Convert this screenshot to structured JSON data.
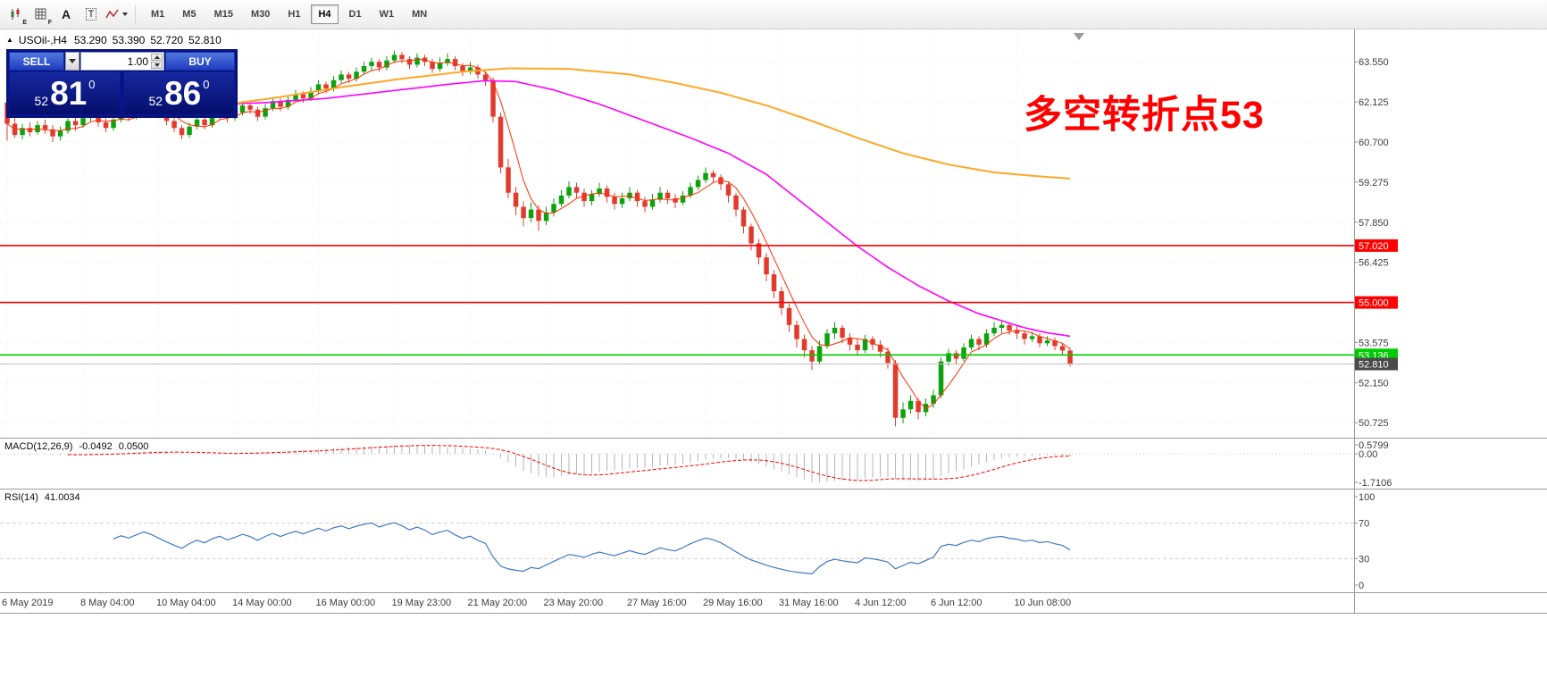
{
  "toolbar": {
    "icon_subs": {
      "e": "E",
      "f": "F",
      "a": "A",
      "t": "T"
    },
    "timeframes": [
      "M1",
      "M5",
      "M15",
      "M30",
      "H1",
      "H4",
      "D1",
      "W1",
      "MN"
    ],
    "active_timeframe": "H4"
  },
  "chart_header": {
    "collapse_icon": "▲",
    "symbol": "USOil-,H4",
    "open": "53.290",
    "high": "53.390",
    "low": "52.720",
    "close": "52.810"
  },
  "quote_panel": {
    "sell_label": "SELL",
    "buy_label": "BUY",
    "volume": "1.00",
    "bid": {
      "whole": "52",
      "pips": "81",
      "pipette": "0"
    },
    "ask": {
      "whole": "52",
      "pips": "86",
      "pipette": "0"
    }
  },
  "annotation": {
    "text": "多空转折点53",
    "color": "#ff0000"
  },
  "indicators": {
    "macd": {
      "label": "MACD(12,26,9)",
      "value1": "-0.0492",
      "value2": "0.0500",
      "scale_max": "0.5799",
      "scale_zero": "0.00",
      "scale_min": "-1.7106"
    },
    "rsi": {
      "label": "RSI(14)",
      "value": "41.0034",
      "levels": [
        "100",
        "70",
        "30",
        "0"
      ]
    }
  },
  "chart_data": {
    "type": "candlestick",
    "symbol": "USOil-",
    "timeframe": "H4",
    "price_scale": [
      63.55,
      62.125,
      60.7,
      59.275,
      57.85,
      56.425,
      55.0,
      53.575,
      52.15,
      50.725
    ],
    "hlines": [
      {
        "value": 57.02,
        "label": "57.020",
        "color": "#ff0000"
      },
      {
        "value": 55.0,
        "label": "55.000",
        "color": "#ff0000"
      },
      {
        "value": 53.136,
        "label": "53.136",
        "color": "#00cc00"
      }
    ],
    "bid_line": {
      "value": 52.81,
      "label": "52.810"
    },
    "fast_ma_period": 5,
    "ma_magenta": [
      [
        0,
        61.9
      ],
      [
        12,
        61.95
      ],
      [
        24,
        62.0
      ],
      [
        34,
        62.1
      ],
      [
        42,
        62.25
      ],
      [
        50,
        62.5
      ],
      [
        58,
        62.75
      ],
      [
        63,
        62.88
      ],
      [
        67,
        62.85
      ],
      [
        72,
        62.55
      ],
      [
        78,
        62.05
      ],
      [
        84,
        61.45
      ],
      [
        90,
        60.85
      ],
      [
        95,
        60.3
      ],
      [
        100,
        59.55
      ],
      [
        104,
        58.7
      ],
      [
        108,
        57.85
      ],
      [
        112,
        57.0
      ],
      [
        116,
        56.25
      ],
      [
        120,
        55.6
      ],
      [
        124,
        55.05
      ],
      [
        128,
        54.6
      ],
      [
        131,
        54.35
      ],
      [
        134,
        54.1
      ],
      [
        137,
        53.92
      ],
      [
        140,
        53.8
      ]
    ],
    "ma_orange": [
      [
        28,
        62.0
      ],
      [
        36,
        62.3
      ],
      [
        44,
        62.65
      ],
      [
        52,
        62.95
      ],
      [
        60,
        63.2
      ],
      [
        66,
        63.32
      ],
      [
        74,
        63.3
      ],
      [
        82,
        63.1
      ],
      [
        88,
        62.8
      ],
      [
        94,
        62.45
      ],
      [
        100,
        62.0
      ],
      [
        106,
        61.45
      ],
      [
        112,
        60.85
      ],
      [
        118,
        60.3
      ],
      [
        124,
        59.9
      ],
      [
        130,
        59.62
      ],
      [
        135,
        59.5
      ],
      [
        140,
        59.4
      ]
    ],
    "x_labels": [
      {
        "i": 0,
        "label": "6 May 2019"
      },
      {
        "i": 10,
        "label": "8 May 04:00"
      },
      {
        "i": 20,
        "label": "10 May 04:00"
      },
      {
        "i": 30,
        "label": "14 May 00:00"
      },
      {
        "i": 41,
        "label": "16 May 00:00"
      },
      {
        "i": 51,
        "label": "19 May 23:00"
      },
      {
        "i": 61,
        "label": "21 May 20:00"
      },
      {
        "i": 71,
        "label": "23 May 20:00"
      },
      {
        "i": 82,
        "label": "27 May 16:00"
      },
      {
        "i": 92,
        "label": "29 May 16:00"
      },
      {
        "i": 102,
        "label": "31 May 16:00"
      },
      {
        "i": 112,
        "label": "4 Jun 12:00"
      },
      {
        "i": 122,
        "label": "6 Jun 12:00"
      },
      {
        "i": 133,
        "label": "10 Jun 08:00"
      }
    ],
    "colors": {
      "up": "#0ea10e",
      "down": "#e23b2e",
      "fast_ma": "#ff3000",
      "magenta_ma": "#ff00ff",
      "orange_ma": "#ffa726",
      "macd_hist": "#b6b6b6",
      "macd_signal": "#ff0000",
      "rsi_line": "#4079c5"
    },
    "candles": [
      [
        62.1,
        62.2,
        60.75,
        61.35
      ],
      [
        61.35,
        61.55,
        60.85,
        60.95
      ],
      [
        60.95,
        61.35,
        60.8,
        61.2
      ],
      [
        61.2,
        61.4,
        60.9,
        61.05
      ],
      [
        61.05,
        61.45,
        60.95,
        61.3
      ],
      [
        61.3,
        61.5,
        61.0,
        61.15
      ],
      [
        61.15,
        61.3,
        60.7,
        60.9
      ],
      [
        60.9,
        61.25,
        60.75,
        61.1
      ],
      [
        61.1,
        61.55,
        61.0,
        61.45
      ],
      [
        61.45,
        61.6,
        61.1,
        61.3
      ],
      [
        61.3,
        61.7,
        61.2,
        61.55
      ],
      [
        61.55,
        61.85,
        61.4,
        61.7
      ],
      [
        61.7,
        61.8,
        61.25,
        61.4
      ],
      [
        61.4,
        61.55,
        61.05,
        61.2
      ],
      [
        61.2,
        61.6,
        61.1,
        61.5
      ],
      [
        61.5,
        61.9,
        61.4,
        61.75
      ],
      [
        61.75,
        61.9,
        61.45,
        61.6
      ],
      [
        61.6,
        62.0,
        61.5,
        61.85
      ],
      [
        61.85,
        62.25,
        61.75,
        62.1
      ],
      [
        62.1,
        62.2,
        61.8,
        61.95
      ],
      [
        61.95,
        62.05,
        61.55,
        61.7
      ],
      [
        61.7,
        61.8,
        61.3,
        61.45
      ],
      [
        61.45,
        61.55,
        61.05,
        61.2
      ],
      [
        61.2,
        61.3,
        60.8,
        60.95
      ],
      [
        60.95,
        61.4,
        60.85,
        61.25
      ],
      [
        61.25,
        61.65,
        61.15,
        61.5
      ],
      [
        61.5,
        61.6,
        61.15,
        61.3
      ],
      [
        61.3,
        61.75,
        61.2,
        61.6
      ],
      [
        61.6,
        61.95,
        61.5,
        61.8
      ],
      [
        61.8,
        61.9,
        61.4,
        61.55
      ],
      [
        61.55,
        61.9,
        61.45,
        61.75
      ],
      [
        61.75,
        62.15,
        61.65,
        62.0
      ],
      [
        62.0,
        62.1,
        61.7,
        61.85
      ],
      [
        61.85,
        61.95,
        61.45,
        61.6
      ],
      [
        61.6,
        62.05,
        61.5,
        61.9
      ],
      [
        61.9,
        62.3,
        61.8,
        62.15
      ],
      [
        62.15,
        62.25,
        61.8,
        61.95
      ],
      [
        61.95,
        62.35,
        61.85,
        62.2
      ],
      [
        62.2,
        62.55,
        62.1,
        62.4
      ],
      [
        62.4,
        62.5,
        62.1,
        62.25
      ],
      [
        62.25,
        62.65,
        62.15,
        62.5
      ],
      [
        62.5,
        62.9,
        62.4,
        62.75
      ],
      [
        62.75,
        62.85,
        62.45,
        62.6
      ],
      [
        62.6,
        63.05,
        62.5,
        62.9
      ],
      [
        62.9,
        63.25,
        62.8,
        63.1
      ],
      [
        63.1,
        63.2,
        62.8,
        62.95
      ],
      [
        62.95,
        63.35,
        62.85,
        63.2
      ],
      [
        63.2,
        63.55,
        63.1,
        63.4
      ],
      [
        63.4,
        63.7,
        63.25,
        63.55
      ],
      [
        63.55,
        63.65,
        63.2,
        63.35
      ],
      [
        63.35,
        63.75,
        63.25,
        63.6
      ],
      [
        63.6,
        63.95,
        63.5,
        63.8
      ],
      [
        63.8,
        63.9,
        63.5,
        63.65
      ],
      [
        63.65,
        63.75,
        63.3,
        63.45
      ],
      [
        63.45,
        63.85,
        63.35,
        63.7
      ],
      [
        63.7,
        63.8,
        63.4,
        63.55
      ],
      [
        63.55,
        63.65,
        63.15,
        63.3
      ],
      [
        63.3,
        63.7,
        63.2,
        63.5
      ],
      [
        63.5,
        63.85,
        63.4,
        63.65
      ],
      [
        63.65,
        63.75,
        63.25,
        63.4
      ],
      [
        63.4,
        63.5,
        63.05,
        63.2
      ],
      [
        63.2,
        63.55,
        63.1,
        63.35
      ],
      [
        63.35,
        63.45,
        62.95,
        63.1
      ],
      [
        63.1,
        63.2,
        62.7,
        62.9
      ],
      [
        62.9,
        63.0,
        61.4,
        61.6
      ],
      [
        61.6,
        61.75,
        59.6,
        59.8
      ],
      [
        59.8,
        60.1,
        58.7,
        58.9
      ],
      [
        58.9,
        59.1,
        58.1,
        58.4
      ],
      [
        58.4,
        58.6,
        57.7,
        58.0
      ],
      [
        58.0,
        58.55,
        57.85,
        58.3
      ],
      [
        58.3,
        58.45,
        57.55,
        57.9
      ],
      [
        57.9,
        58.4,
        57.75,
        58.2
      ],
      [
        58.2,
        58.7,
        58.05,
        58.5
      ],
      [
        58.5,
        59.0,
        58.4,
        58.8
      ],
      [
        58.8,
        59.3,
        58.7,
        59.1
      ],
      [
        59.1,
        59.25,
        58.7,
        58.9
      ],
      [
        58.9,
        59.05,
        58.4,
        58.6
      ],
      [
        58.6,
        59.0,
        58.45,
        58.85
      ],
      [
        58.85,
        59.25,
        58.75,
        59.05
      ],
      [
        59.05,
        59.15,
        58.55,
        58.75
      ],
      [
        58.75,
        58.9,
        58.3,
        58.5
      ],
      [
        58.5,
        58.9,
        58.35,
        58.7
      ],
      [
        58.7,
        59.1,
        58.6,
        58.9
      ],
      [
        58.9,
        59.0,
        58.4,
        58.6
      ],
      [
        58.6,
        58.75,
        58.2,
        58.4
      ],
      [
        58.4,
        58.85,
        58.3,
        58.65
      ],
      [
        58.65,
        59.1,
        58.55,
        58.9
      ],
      [
        58.9,
        59.0,
        58.5,
        58.7
      ],
      [
        58.7,
        58.85,
        58.35,
        58.55
      ],
      [
        58.55,
        58.95,
        58.45,
        58.8
      ],
      [
        58.8,
        59.25,
        58.7,
        59.1
      ],
      [
        59.1,
        59.5,
        59.0,
        59.35
      ],
      [
        59.35,
        59.8,
        59.25,
        59.6
      ],
      [
        59.6,
        59.7,
        59.25,
        59.45
      ],
      [
        59.45,
        59.55,
        59.0,
        59.2
      ],
      [
        59.2,
        59.3,
        58.55,
        58.8
      ],
      [
        58.8,
        58.9,
        58.05,
        58.3
      ],
      [
        58.3,
        58.4,
        57.45,
        57.7
      ],
      [
        57.7,
        57.8,
        56.85,
        57.1
      ],
      [
        57.1,
        57.25,
        56.35,
        56.6
      ],
      [
        56.6,
        56.75,
        55.75,
        56.0
      ],
      [
        56.0,
        56.15,
        55.15,
        55.4
      ],
      [
        55.4,
        55.55,
        54.55,
        54.8
      ],
      [
        54.8,
        54.95,
        53.95,
        54.2
      ],
      [
        54.2,
        54.35,
        53.4,
        53.7
      ],
      [
        53.7,
        53.85,
        53.05,
        53.3
      ],
      [
        53.3,
        53.45,
        52.6,
        52.9
      ],
      [
        52.9,
        53.65,
        52.8,
        53.45
      ],
      [
        53.45,
        54.05,
        53.35,
        53.9
      ],
      [
        53.9,
        54.3,
        53.7,
        54.1
      ],
      [
        54.1,
        54.2,
        53.55,
        53.75
      ],
      [
        53.75,
        53.9,
        53.3,
        53.5
      ],
      [
        53.5,
        53.7,
        53.1,
        53.3
      ],
      [
        53.3,
        53.85,
        53.2,
        53.7
      ],
      [
        53.7,
        53.8,
        53.3,
        53.5
      ],
      [
        53.5,
        53.65,
        53.05,
        53.25
      ],
      [
        53.25,
        53.4,
        52.65,
        52.85
      ],
      [
        52.85,
        52.95,
        50.6,
        50.9
      ],
      [
        50.9,
        51.45,
        50.7,
        51.2
      ],
      [
        51.2,
        51.7,
        51.05,
        51.5
      ],
      [
        51.5,
        51.6,
        50.85,
        51.1
      ],
      [
        51.1,
        51.6,
        50.95,
        51.4
      ],
      [
        51.4,
        51.9,
        51.25,
        51.7
      ],
      [
        51.7,
        53.05,
        51.6,
        52.9
      ],
      [
        52.9,
        53.35,
        52.75,
        53.2
      ],
      [
        53.2,
        53.3,
        52.8,
        53.0
      ],
      [
        53.0,
        53.55,
        52.9,
        53.4
      ],
      [
        53.4,
        53.85,
        53.3,
        53.7
      ],
      [
        53.7,
        53.8,
        53.3,
        53.5
      ],
      [
        53.5,
        54.05,
        53.4,
        53.9
      ],
      [
        53.9,
        54.3,
        53.8,
        54.1
      ],
      [
        54.1,
        54.35,
        53.9,
        54.2
      ],
      [
        54.2,
        54.3,
        53.85,
        54.0
      ],
      [
        54.0,
        54.15,
        53.7,
        53.9
      ],
      [
        53.9,
        54.0,
        53.5,
        53.7
      ],
      [
        53.7,
        53.95,
        53.6,
        53.8
      ],
      [
        53.8,
        53.9,
        53.4,
        53.55
      ],
      [
        53.55,
        53.8,
        53.45,
        53.65
      ],
      [
        53.65,
        53.75,
        53.3,
        53.45
      ],
      [
        53.45,
        53.55,
        53.15,
        53.29
      ],
      [
        53.29,
        53.39,
        52.72,
        52.81
      ]
    ]
  }
}
